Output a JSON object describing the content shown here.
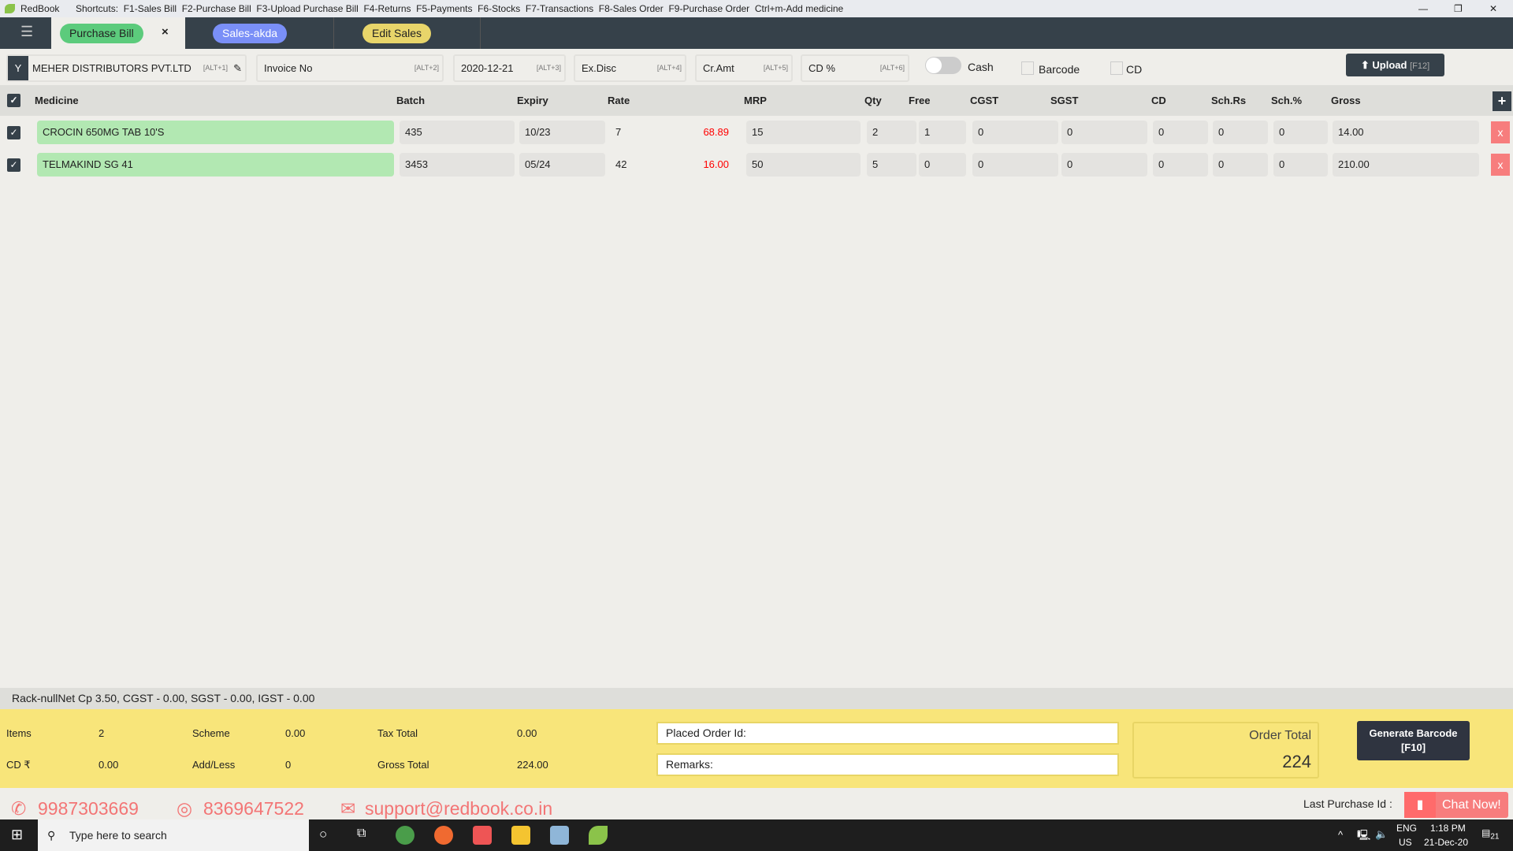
{
  "titlebar": {
    "app": "RedBook",
    "shortcuts": "Shortcuts:  F1-Sales Bill  F2-Purchase Bill  F3-Upload Purchase Bill  F4-Returns  F5-Payments  F6-Stocks  F7-Transactions  F8-Sales Order  F9-Purchase Order  Ctrl+m-Add medicine"
  },
  "tabs": [
    {
      "label": "Purchase Bill",
      "color": "#5ccb7c",
      "close": "×"
    },
    {
      "label": "Sales-akda",
      "color": "#7a8ff7"
    },
    {
      "label": "Edit Sales",
      "color": "#e8d56a"
    }
  ],
  "toolbar": {
    "supplier": "MEHER DISTRIBUTORS PVT.LTD",
    "supplier_key": "[ALT+1]",
    "invoice": "Invoice No",
    "invoice_key": "[ALT+2]",
    "date": "2020-12-21",
    "date_key": "[ALT+3]",
    "exdisc": "Ex.Disc",
    "exdisc_key": "[ALT+4]",
    "cramt": "Cr.Amt",
    "cramt_key": "[ALT+5]",
    "cdp": "CD %",
    "cdp_key": "[ALT+6]",
    "cash": "Cash",
    "cash_on": false,
    "barcode": "Barcode",
    "barcode_checked": false,
    "cd": "CD",
    "cd_checked": false,
    "upload": "Upload",
    "upload_key": "[F12]"
  },
  "columns": [
    "Medicine",
    "Batch",
    "Expiry",
    "Rate",
    "MRP",
    "Qty",
    "Free",
    "CGST",
    "SGST",
    "CD",
    "Sch.Rs",
    "Sch.%",
    "Gross"
  ],
  "rows": [
    {
      "checked": true,
      "medicine": "CROCIN 650MG TAB 10'S",
      "batch": "435",
      "expiry": "10/23",
      "rate": "7",
      "mrp_ref": "68.89",
      "mrp": "15",
      "qty": "2",
      "free": "1",
      "cgst": "0",
      "sgst": "0",
      "cd": "0",
      "schrs": "0",
      "schp": "0",
      "gross": "14.00"
    },
    {
      "checked": true,
      "medicine": "TELMAKIND SG 41",
      "batch": "3453",
      "expiry": "05/24",
      "rate": "42",
      "mrp_ref": "16.00",
      "mrp": "50",
      "qty": "5",
      "free": "0",
      "cgst": "0",
      "sgst": "0",
      "cd": "0",
      "schrs": "0",
      "schp": "0",
      "gross": "210.00"
    }
  ],
  "status": "Rack-nullNet Cp 3.50, CGST - 0.00, SGST - 0.00, IGST - 0.00",
  "summary": {
    "items_l": "Items",
    "items": "2",
    "scheme_l": "Scheme",
    "scheme": "0.00",
    "tax_l": "Tax Total",
    "tax": "0.00",
    "cd_l": "CD ₹",
    "cd": "0.00",
    "addless_l": "Add/Less",
    "addless": "0",
    "gross_l": "Gross Total",
    "gross": "224.00",
    "placed": "Placed Order Id:",
    "remarks": "Remarks:",
    "order_total_l": "Order Total",
    "order_total": "224",
    "gen_barcode": "Generate Barcode",
    "gen_key": "[F10]"
  },
  "contacts": {
    "phone": "9987303669",
    "whatsapp": "8369647522",
    "email": "support@redbook.co.in",
    "last_purchase": "Last Purchase Id :",
    "chat": "Chat Now!"
  },
  "taskbar": {
    "search": "Type here to search",
    "lang": "ENG",
    "region": "US",
    "time": "1:18 PM",
    "date": "21-Dec-20",
    "notif": "21"
  }
}
